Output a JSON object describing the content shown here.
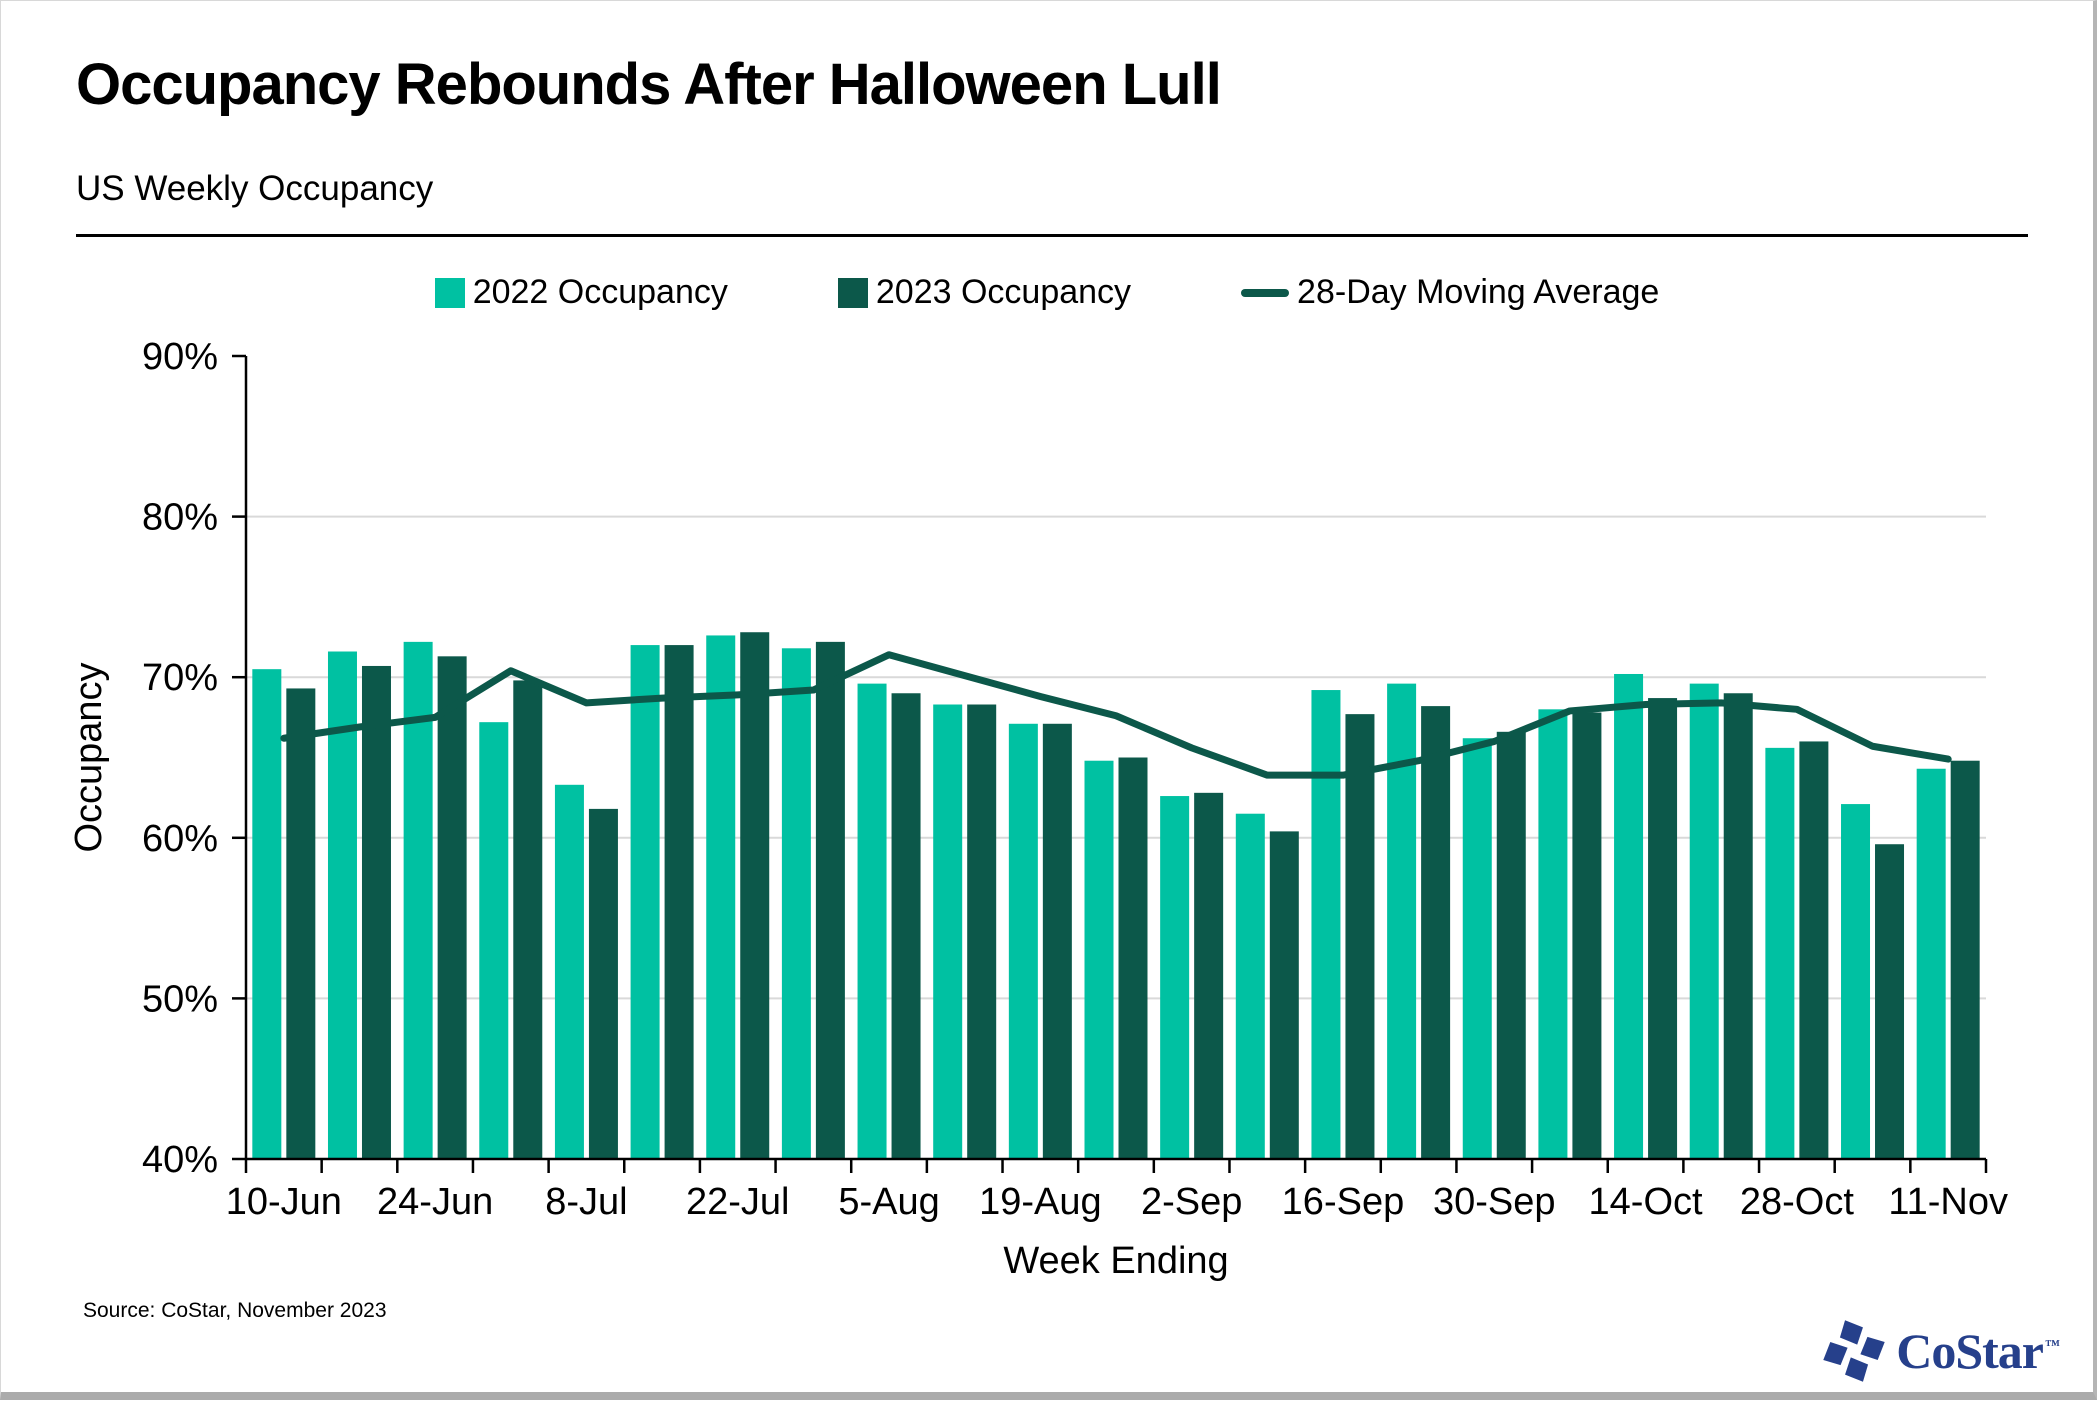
{
  "header": {
    "title": "Occupancy Rebounds After Halloween Lull",
    "subtitle": "US Weekly Occupancy"
  },
  "chart_data": {
    "type": "bar",
    "title": "Occupancy Rebounds After Halloween Lull",
    "subtitle": "US Weekly Occupancy",
    "xlabel": "Week Ending",
    "ylabel": "Occupancy",
    "ylim": [
      40,
      90
    ],
    "ytick_step": 10,
    "ytick_format": "percent",
    "grid": "horizontal",
    "legend_position": "top",
    "categories": [
      "10-Jun",
      "17-Jun",
      "24-Jun",
      "1-Jul",
      "8-Jul",
      "15-Jul",
      "22-Jul",
      "29-Jul",
      "5-Aug",
      "12-Aug",
      "19-Aug",
      "26-Aug",
      "2-Sep",
      "9-Sep",
      "16-Sep",
      "23-Sep",
      "30-Sep",
      "7-Oct",
      "14-Oct",
      "21-Oct",
      "28-Oct",
      "4-Nov",
      "11-Nov"
    ],
    "xtick_labels_shown": [
      "10-Jun",
      "24-Jun",
      "8-Jul",
      "22-Jul",
      "5-Aug",
      "19-Aug",
      "2-Sep",
      "16-Sep",
      "30-Sep",
      "14-Oct",
      "28-Oct",
      "11-Nov"
    ],
    "series": [
      {
        "name": "2022 Occupancy",
        "type": "bar",
        "color": "#00C1A2",
        "values": [
          70.5,
          71.6,
          72.2,
          67.2,
          63.3,
          72.0,
          72.6,
          71.8,
          69.6,
          68.3,
          67.1,
          64.8,
          62.6,
          61.5,
          69.2,
          69.6,
          66.2,
          68.0,
          70.2,
          69.6,
          65.6,
          62.1,
          64.3
        ]
      },
      {
        "name": "2023 Occupancy",
        "type": "bar",
        "color": "#0C584A",
        "values": [
          69.3,
          70.7,
          71.3,
          69.8,
          61.8,
          72.0,
          72.8,
          72.2,
          69.0,
          68.3,
          67.1,
          65.0,
          62.8,
          60.4,
          67.7,
          68.2,
          66.6,
          67.8,
          68.7,
          69.0,
          66.0,
          59.6,
          64.8
        ]
      },
      {
        "name": "28-Day Moving Average",
        "type": "line",
        "color": "#0C584A",
        "values": [
          66.2,
          66.9,
          67.5,
          70.4,
          68.4,
          68.7,
          68.9,
          69.2,
          71.4,
          70.1,
          68.8,
          67.6,
          65.6,
          63.9,
          63.9,
          64.8,
          66.0,
          67.9,
          68.3,
          68.4,
          68.0,
          65.7,
          64.9
        ]
      }
    ],
    "colors": {
      "grid": "#D9D9D9",
      "axis": "#000000"
    }
  },
  "footer": {
    "source": "Source: CoStar, November 2023",
    "logo_text": "CoStar",
    "logo_tm": "TM",
    "logo_color": "#26408B"
  }
}
